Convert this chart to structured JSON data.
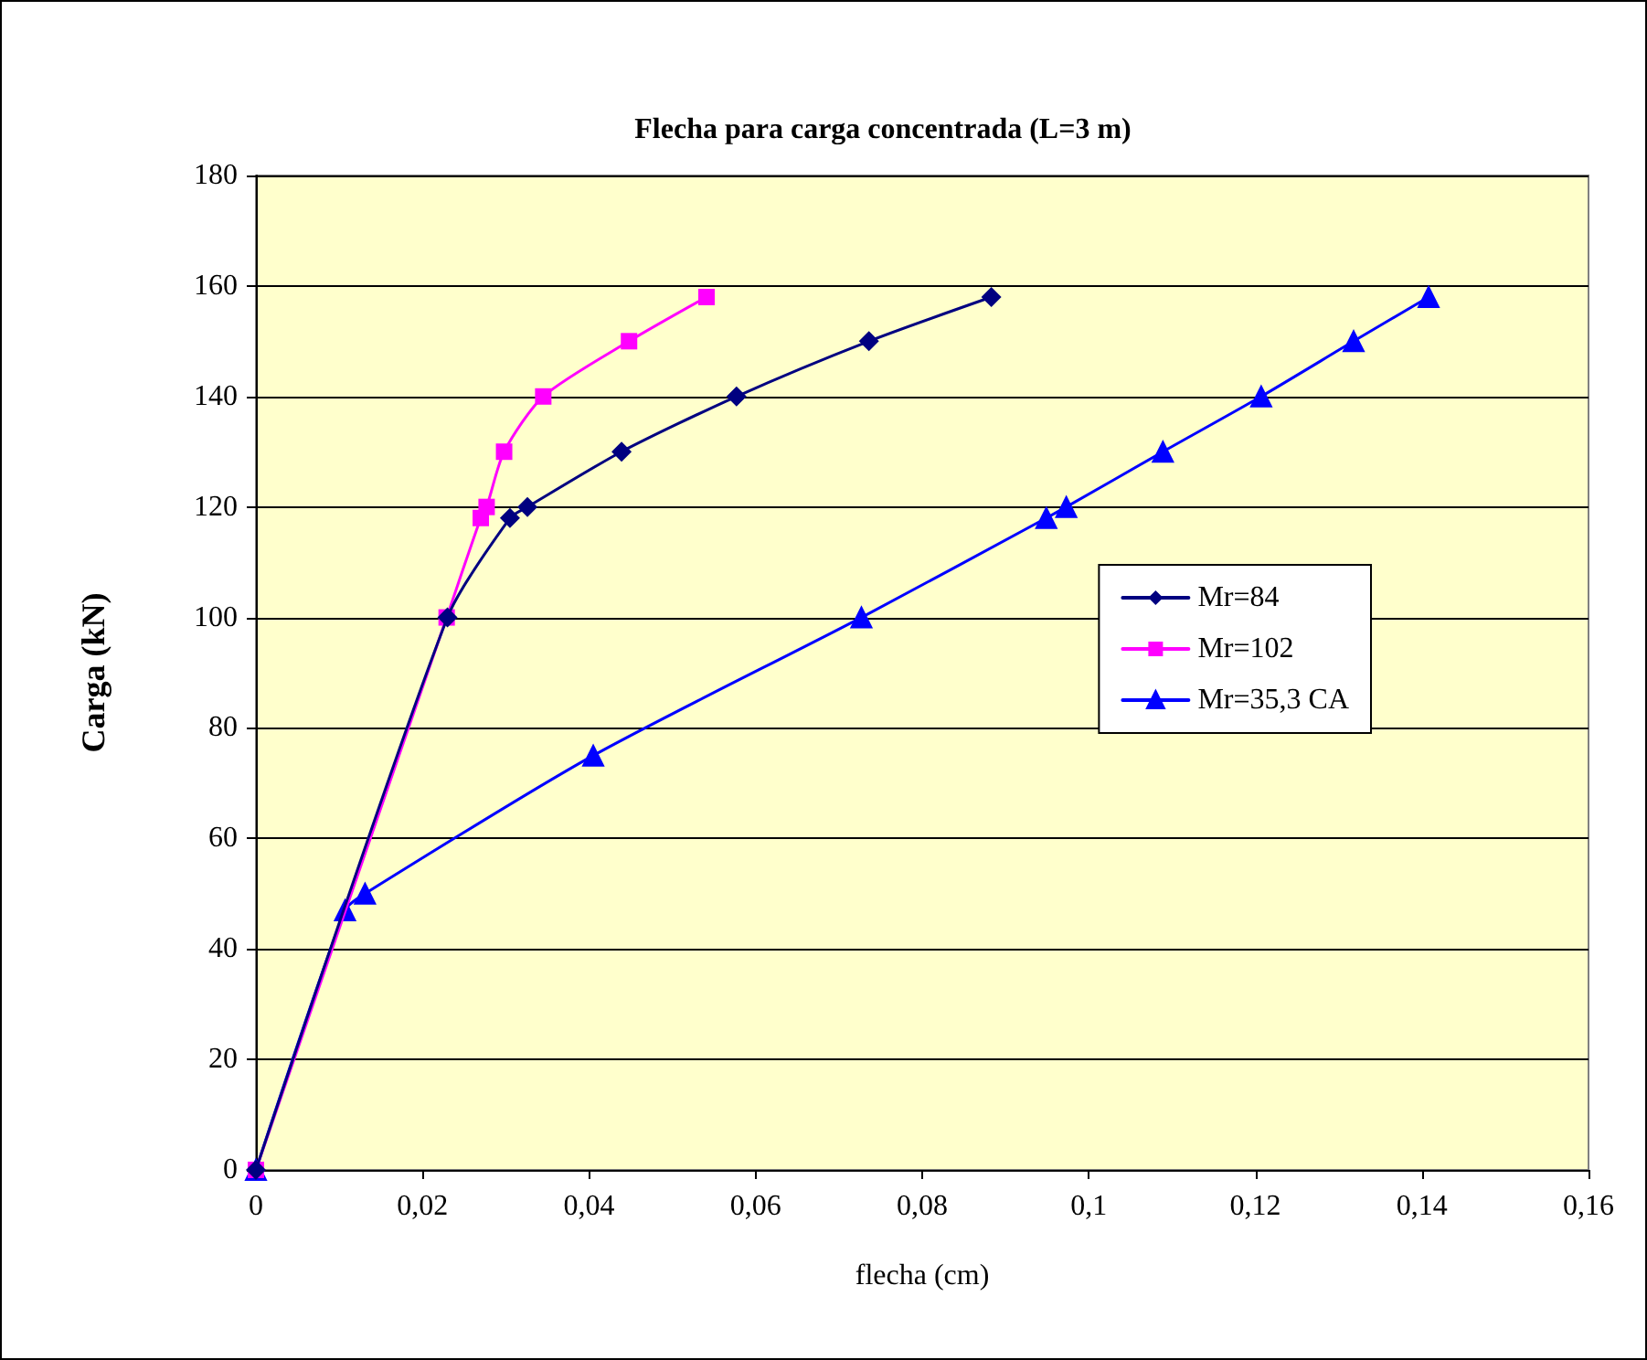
{
  "chart_data": {
    "type": "line",
    "title": "Flecha para carga concentrada (L=3 m)",
    "xlabel": "flecha (cm)",
    "ylabel": "Carga (kN)",
    "xlim": [
      0,
      0.16
    ],
    "xticks": [
      {
        "value": 0,
        "label": "0"
      },
      {
        "value": 0.02,
        "label": "0,02"
      },
      {
        "value": 0.04,
        "label": "0,04"
      },
      {
        "value": 0.06,
        "label": "0,06"
      },
      {
        "value": 0.08,
        "label": "0,08"
      },
      {
        "value": 0.1,
        "label": "0,1"
      },
      {
        "value": 0.12,
        "label": "0,12"
      },
      {
        "value": 0.14,
        "label": "0,14"
      },
      {
        "value": 0.16,
        "label": "0,16"
      }
    ],
    "ylim": [
      0,
      180
    ],
    "yticks": [
      0,
      20,
      40,
      60,
      80,
      100,
      120,
      140,
      160,
      180
    ],
    "grid": "y",
    "legend": "right",
    "series": [
      {
        "name": "Mr=84",
        "color": "#000080",
        "marker": "diamond",
        "x": [
          0,
          0.023,
          0.0305,
          0.0326,
          0.0439,
          0.0577,
          0.0736,
          0.0883
        ],
        "values": [
          0,
          100,
          118,
          120,
          130,
          140,
          150,
          158
        ]
      },
      {
        "name": "Mr=102",
        "color": "#ff00ff",
        "marker": "square",
        "x": [
          0,
          0.0229,
          0.027,
          0.0277,
          0.0298,
          0.0345,
          0.0448,
          0.0541
        ],
        "values": [
          0,
          100,
          118,
          120,
          130,
          140,
          150,
          158
        ]
      },
      {
        "name": "Mr=35,3 CA",
        "color": "#0000ff",
        "marker": "triangle",
        "x": [
          0,
          0.0107,
          0.0131,
          0.0405,
          0.0727,
          0.0949,
          0.0973,
          0.1089,
          0.1207,
          0.1318,
          0.1408
        ],
        "values": [
          0,
          47,
          50,
          75,
          100,
          118,
          120,
          130,
          140,
          150,
          158
        ]
      }
    ]
  }
}
